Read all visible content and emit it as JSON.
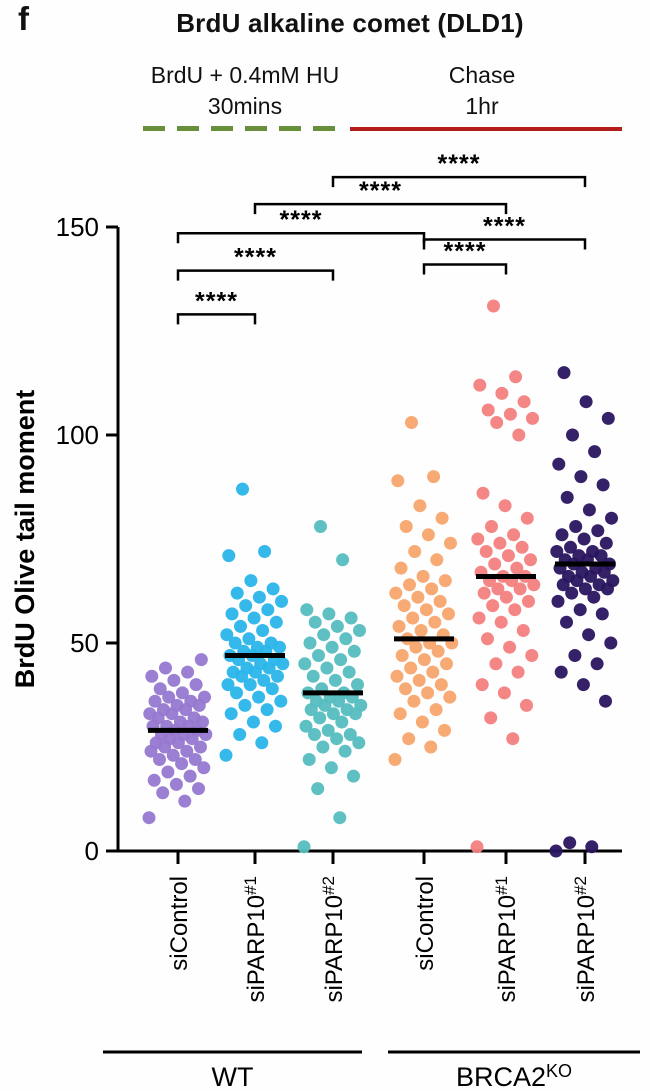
{
  "panel_label": "f",
  "title": "BrdU alkaline comet (DLD1)",
  "treatment": {
    "phase1_line1": "BrdU + 0.4mM HU",
    "phase1_line2": "30mins",
    "phase1_color": "#688f3c",
    "phase2_line1": "Chase",
    "ph2_note": "",
    "phase2_line2": "1hr",
    "phase2_color": "#b51d1d"
  },
  "chart_data": {
    "type": "scatter",
    "title": "BrdU alkaline comet (DLD1)",
    "ylabel": "BrdU Olive tail moment",
    "ylim": [
      0,
      150
    ],
    "yticks": [
      0,
      50,
      100,
      150
    ],
    "grid": false,
    "median_color": "#000000",
    "groups": [
      {
        "label": "siControl",
        "sup": "",
        "genotype": "WT",
        "color": "#9678d0",
        "median": 29,
        "values": [
          8,
          12,
          14,
          15,
          16,
          17,
          18,
          19,
          20,
          21,
          22,
          22,
          23,
          24,
          24,
          25,
          25,
          26,
          26,
          27,
          27,
          28,
          28,
          28,
          29,
          29,
          30,
          30,
          30,
          31,
          31,
          32,
          32,
          33,
          33,
          34,
          34,
          35,
          35,
          36,
          36,
          37,
          37,
          38,
          39,
          40,
          41,
          42,
          43,
          44,
          46
        ]
      },
      {
        "label": "siPARP10",
        "sup": "#1",
        "genotype": "WT",
        "color": "#2ab5ea",
        "median": 47,
        "values": [
          23,
          26,
          28,
          30,
          31,
          33,
          34,
          35,
          36,
          37,
          38,
          39,
          40,
          40,
          41,
          42,
          42,
          43,
          43,
          44,
          44,
          45,
          45,
          46,
          46,
          47,
          47,
          48,
          48,
          49,
          49,
          50,
          50,
          51,
          52,
          53,
          54,
          55,
          56,
          57,
          58,
          59,
          60,
          61,
          62,
          63,
          65,
          71,
          72,
          87
        ]
      },
      {
        "label": "siPARP10",
        "sup": "#2",
        "genotype": "WT",
        "color": "#55bdc0",
        "median": 38,
        "values": [
          1,
          8,
          15,
          18,
          20,
          22,
          24,
          25,
          26,
          27,
          28,
          28,
          29,
          30,
          31,
          32,
          33,
          33,
          34,
          34,
          35,
          35,
          36,
          36,
          37,
          37,
          38,
          38,
          39,
          40,
          41,
          42,
          43,
          44,
          45,
          46,
          47,
          48,
          49,
          50,
          51,
          52,
          53,
          54,
          55,
          56,
          57,
          58,
          70,
          78
        ]
      },
      {
        "label": "siControl",
        "sup": "",
        "genotype": "BRCA2KO",
        "color": "#f8a56e",
        "median": 51,
        "values": [
          22,
          25,
          27,
          29,
          31,
          33,
          34,
          36,
          37,
          38,
          39,
          40,
          41,
          42,
          43,
          44,
          45,
          46,
          47,
          48,
          49,
          50,
          50,
          51,
          52,
          53,
          54,
          55,
          56,
          57,
          58,
          59,
          60,
          61,
          62,
          63,
          64,
          65,
          66,
          68,
          70,
          72,
          74,
          76,
          78,
          80,
          83,
          89,
          90,
          103
        ]
      },
      {
        "label": "siPARP10",
        "sup": "#1",
        "genotype": "BRCA2KO",
        "color": "#f38080",
        "median": 66,
        "values": [
          1,
          27,
          32,
          35,
          38,
          40,
          43,
          45,
          47,
          49,
          51,
          53,
          55,
          56,
          58,
          59,
          60,
          61,
          62,
          63,
          63,
          64,
          65,
          65,
          66,
          66,
          67,
          68,
          69,
          70,
          71,
          72,
          73,
          74,
          75,
          76,
          78,
          80,
          83,
          86,
          100,
          103,
          104,
          105,
          106,
          108,
          110,
          112,
          114,
          131
        ]
      },
      {
        "label": "siPARP10",
        "sup": "#2",
        "genotype": "BRCA2KO",
        "color": "#2a1560",
        "median": 69,
        "values": [
          0,
          1,
          2,
          36,
          40,
          43,
          45,
          47,
          50,
          52,
          55,
          57,
          58,
          60,
          61,
          62,
          63,
          63,
          64,
          64,
          65,
          65,
          66,
          66,
          67,
          67,
          68,
          68,
          69,
          69,
          70,
          70,
          71,
          71,
          72,
          72,
          73,
          74,
          75,
          76,
          77,
          78,
          80,
          82,
          85,
          88,
          90,
          93,
          96,
          100,
          104,
          108,
          115
        ]
      }
    ],
    "genotype_groups": [
      {
        "label": "WT",
        "sup": "",
        "from": 0,
        "to": 2
      },
      {
        "label": "BRCA2",
        "sup": "KO",
        "from": 3,
        "to": 5
      }
    ],
    "significance": [
      {
        "from": 0,
        "to": 1,
        "y": 129,
        "label": "****"
      },
      {
        "from": 0,
        "to": 2,
        "y": 139.5,
        "label": "****"
      },
      {
        "from": 3,
        "to": 4,
        "y": 141,
        "label": "****"
      },
      {
        "from": 0,
        "to": 3,
        "y": 148.5,
        "label": "****"
      },
      {
        "from": 3,
        "to": 5,
        "y": 147,
        "label": "****"
      },
      {
        "from": 1,
        "to": 4,
        "y": 155.5,
        "label": "****"
      },
      {
        "from": 2,
        "to": 5,
        "y": 162,
        "label": "****"
      }
    ]
  }
}
